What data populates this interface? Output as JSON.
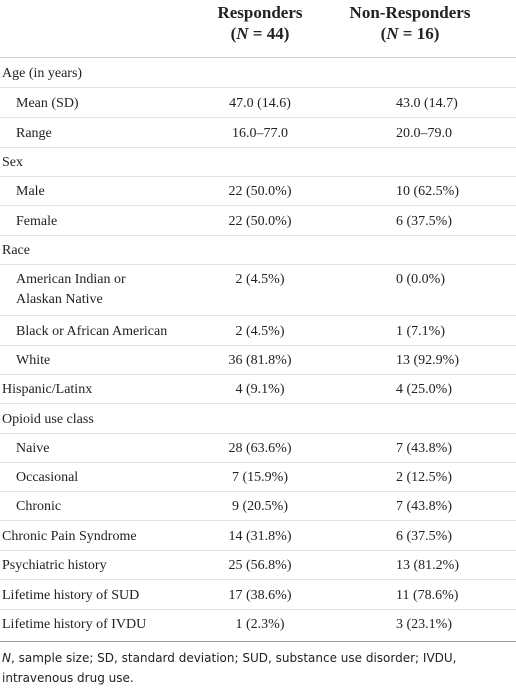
{
  "table": {
    "columns": [
      {
        "line1": "Responders",
        "line2_prefix": "(",
        "n_label": "N",
        "line2_suffix": " = 44)"
      },
      {
        "line1": "Non-Responders",
        "line2_prefix": "(",
        "n_label": "N",
        "line2_suffix": " = 16)"
      }
    ],
    "rows": [
      {
        "label": "Age (in years)",
        "indent": false,
        "v1": "",
        "v2": ""
      },
      {
        "label": "Mean (SD)",
        "indent": true,
        "v1": "47.0 (14.6)",
        "v2": "43.0 (14.7)"
      },
      {
        "label": "Range",
        "indent": true,
        "v1": "16.0–77.0",
        "v2": "20.0–79.0"
      },
      {
        "label": "Sex",
        "indent": false,
        "v1": "",
        "v2": ""
      },
      {
        "label": "Male",
        "indent": true,
        "v1": "22 (50.0%)",
        "v2": "10 (62.5%)"
      },
      {
        "label": "Female",
        "indent": true,
        "v1": "22 (50.0%)",
        "v2": "6 (37.5%)"
      },
      {
        "label": "Race",
        "indent": false,
        "v1": "",
        "v2": ""
      },
      {
        "label": "American Indian or",
        "label2": "Alaskan Native",
        "indent": true,
        "v1": "2 (4.5%)",
        "v2": "0 (0.0%)"
      },
      {
        "label": "Black or African American",
        "indent": true,
        "v1": "2 (4.5%)",
        "v2": "1 (7.1%)"
      },
      {
        "label": "White",
        "indent": true,
        "v1": "36 (81.8%)",
        "v2": "13 (92.9%)"
      },
      {
        "label": "Hispanic/Latinx",
        "indent": false,
        "v1": "4 (9.1%)",
        "v2": "4 (25.0%)"
      },
      {
        "label": "Opioid use class",
        "indent": false,
        "v1": "",
        "v2": ""
      },
      {
        "label": "Naive",
        "indent": true,
        "v1": "28 (63.6%)",
        "v2": "7 (43.8%)"
      },
      {
        "label": "Occasional",
        "indent": true,
        "v1": "7 (15.9%)",
        "v2": "2 (12.5%)"
      },
      {
        "label": "Chronic",
        "indent": true,
        "v1": "9 (20.5%)",
        "v2": "7 (43.8%)"
      },
      {
        "label": "Chronic Pain Syndrome",
        "indent": false,
        "v1": "14 (31.8%)",
        "v2": "6 (37.5%)"
      },
      {
        "label": "Psychiatric history",
        "indent": false,
        "v1": "25 (56.8%)",
        "v2": "13 (81.2%)"
      },
      {
        "label": "Lifetime history of SUD",
        "indent": false,
        "v1": "17 (38.6%)",
        "v2": "11 (78.6%)"
      },
      {
        "label": "Lifetime history of IVDU",
        "indent": false,
        "v1": "1 (2.3%)",
        "v2": "3 (23.1%)"
      }
    ]
  },
  "footnote": {
    "n_label": "N",
    "text": ", sample size; SD, standard deviation; SUD, substance use disorder; IVDU, intravenous drug use."
  }
}
